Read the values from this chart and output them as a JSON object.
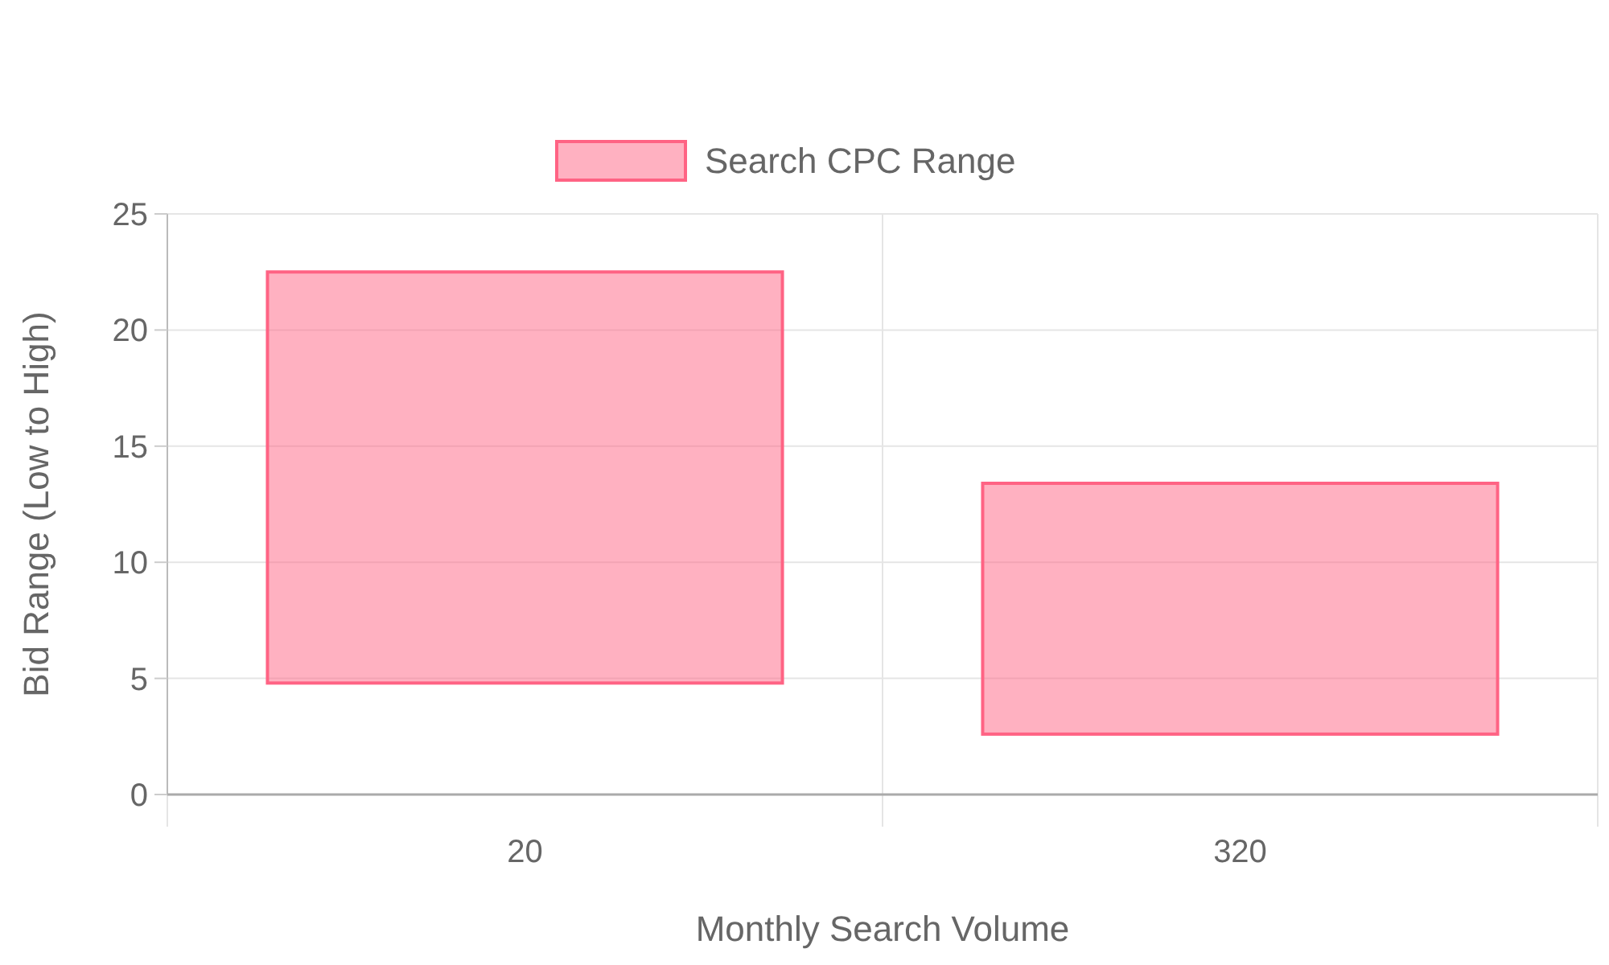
{
  "chart_data": {
    "type": "bar",
    "xlabel": "Monthly Search Volume",
    "ylabel": "Bid Range (Low to High)",
    "categories": [
      "20",
      "320"
    ],
    "series": [
      {
        "name": "Search CPC Range",
        "color": "#ff6384",
        "values": [
          17.7,
          10.8
        ],
        "base": [
          4.8,
          2.6
        ]
      }
    ],
    "ylim": [
      0,
      25
    ],
    "yticks": [
      0,
      5,
      10,
      15,
      20,
      25
    ],
    "grid": true,
    "legend": "top"
  }
}
